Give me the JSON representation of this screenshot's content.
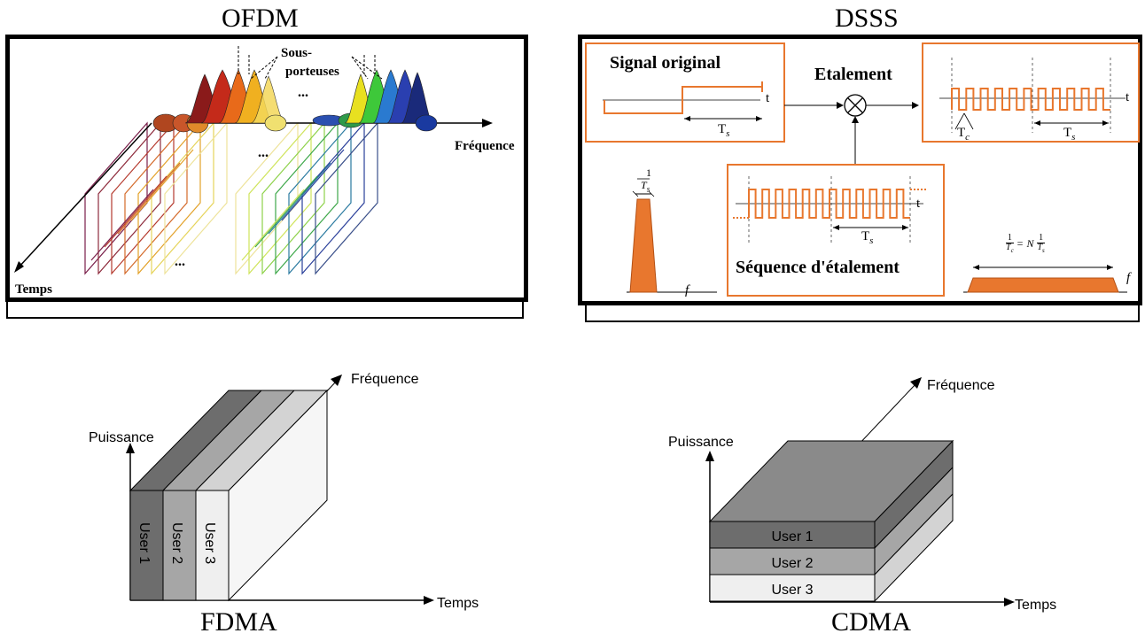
{
  "ofdm": {
    "title": "OFDM",
    "subcarriers_label_line1": "Sous-",
    "subcarriers_label_line2": "porteuses",
    "freq_axis": "Fréquence",
    "time_axis": "Temps",
    "ellipsis": "..."
  },
  "dsss": {
    "title": "DSSS",
    "signal_title": "Signal original",
    "spreading_label": "Etalement",
    "sequence_title": "Séquence d'étalement",
    "t": "t",
    "ts": "T",
    "ts_sub": "s",
    "tc": "T",
    "tc_sub": "c",
    "one": "1",
    "f": "f",
    "eq_n": "N"
  },
  "fdma": {
    "title": "FDMA",
    "y_axis": "Puissance",
    "freq_axis": "Fréquence",
    "time_axis": "Temps",
    "users": [
      "User 1",
      "User 2",
      "User 3"
    ]
  },
  "cdma": {
    "title": "CDMA",
    "y_axis": "Puissance",
    "freq_axis": "Fréquence",
    "time_axis": "Temps",
    "users": [
      "User 1",
      "User 2",
      "User 3"
    ]
  },
  "colors": {
    "orange": "#e8772e",
    "dark_gray": "#6d6d6d",
    "mid_gray": "#a6a6a6",
    "light_gray": "#efefef"
  }
}
